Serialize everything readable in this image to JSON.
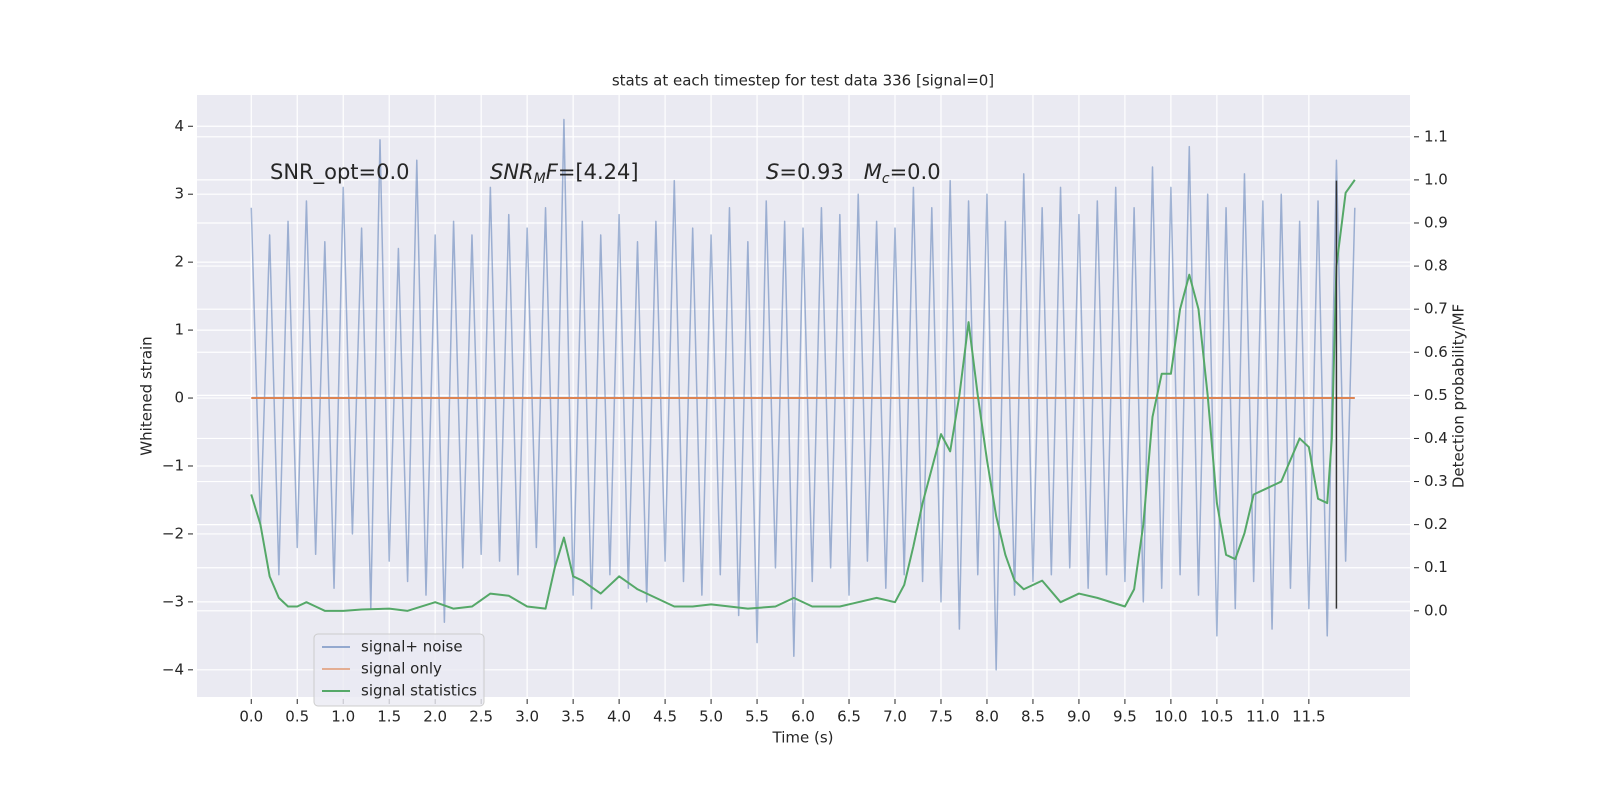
{
  "chart_data": {
    "type": "line",
    "title": "stats at each timestep for test data 336 [signal=0]",
    "xlabel": "Time (s)",
    "ylabel": "Whitened strain",
    "y2label": "Detection probability/MF",
    "annotations": [
      {
        "parts": [
          {
            "text": "SNR_opt=0.0"
          }
        ]
      },
      {
        "parts": [
          {
            "text": "SNR",
            "italic": true
          },
          {
            "text": "M",
            "italic": true,
            "sub": true
          },
          {
            "text": "F",
            "italic": true
          },
          {
            "text": "=[4.24]"
          }
        ]
      },
      {
        "parts": [
          {
            "text": "S",
            "italic": true
          },
          {
            "text": "=0.93   "
          },
          {
            "text": "M",
            "italic": true
          },
          {
            "text": "c",
            "italic": true,
            "sub": true
          },
          {
            "text": "=0.0"
          }
        ]
      }
    ],
    "xlim": [
      -0.59,
      12.6
    ],
    "ylim": [
      -4.4,
      4.46
    ],
    "y2lim": [
      -0.2,
      1.197
    ],
    "xticks": [
      {
        "value": 0,
        "label": "0.0"
      },
      0.5,
      {
        "value": 1,
        "label": "1.0"
      },
      1.5,
      {
        "value": 2,
        "label": "2.0"
      },
      2.5,
      {
        "value": 3,
        "label": "3.0"
      },
      3.5,
      {
        "value": 4,
        "label": "4.0"
      },
      4.5,
      {
        "value": 5,
        "label": "5.0"
      },
      5.5,
      {
        "value": 6,
        "label": "6.0"
      },
      6.5,
      {
        "value": 7,
        "label": "7.0"
      },
      7.5,
      {
        "value": 8,
        "label": "8.0"
      },
      8.5,
      {
        "value": 9,
        "label": "9.0"
      },
      9.5,
      {
        "value": 10,
        "label": "10.0"
      },
      10.5,
      {
        "value": 11,
        "label": "11.0"
      },
      11.5
    ],
    "yticks": [
      {
        "value": -4,
        "label": "−4"
      },
      {
        "value": -3,
        "label": "−3"
      },
      {
        "value": -2,
        "label": "−2"
      },
      {
        "value": -1,
        "label": "−1"
      },
      0,
      1,
      2,
      3,
      4
    ],
    "y2ticks": [
      {
        "value": 0,
        "label": "0.0"
      },
      0.1,
      0.2,
      0.3,
      0.4,
      0.5,
      0.6,
      0.7,
      0.8,
      0.9,
      {
        "value": 1,
        "label": "1.0"
      },
      1.1
    ],
    "grid": true,
    "legend": "lower left",
    "markers": [
      {
        "x": 11.8,
        "ymin": -3.1,
        "ymax": 3.2,
        "color": "#333333"
      }
    ],
    "series": [
      {
        "name": "signal+ noise",
        "color": "#4c72b0",
        "x": [
          0,
          0.1,
          0.2,
          0.3,
          0.4,
          0.5,
          0.6,
          0.7,
          0.8,
          0.9,
          1,
          1.1,
          1.2,
          1.3,
          1.4,
          1.5,
          1.6,
          1.7,
          1.8,
          1.9,
          2,
          2.1,
          2.2,
          2.3,
          2.4,
          2.5,
          2.6,
          2.7,
          2.8,
          2.9,
          3,
          3.1,
          3.2,
          3.3,
          3.4,
          3.5,
          3.6,
          3.7,
          3.8,
          3.9,
          4,
          4.1,
          4.2,
          4.3,
          4.4,
          4.5,
          4.6,
          4.7,
          4.8,
          4.9,
          5,
          5.1,
          5.2,
          5.3,
          5.4,
          5.5,
          5.6,
          5.7,
          5.8,
          5.9,
          6,
          6.1,
          6.2,
          6.3,
          6.4,
          6.5,
          6.6,
          6.7,
          6.8,
          6.9,
          7,
          7.1,
          7.2,
          7.3,
          7.4,
          7.5,
          7.6,
          7.7,
          7.8,
          7.9,
          8,
          8.1,
          8.2,
          8.3,
          8.4,
          8.5,
          8.6,
          8.7,
          8.8,
          8.9,
          9,
          9.1,
          9.2,
          9.3,
          9.4,
          9.5,
          9.6,
          9.7,
          9.8,
          9.9,
          10,
          10.1,
          10.2,
          10.3,
          10.4,
          10.5,
          10.6,
          10.7,
          10.8,
          10.9,
          11,
          11.1,
          11.2,
          11.3,
          11.4,
          11.5,
          11.6,
          11.7,
          11.8,
          11.9,
          12
        ],
        "values": [
          2.8,
          -1.9,
          2.4,
          -2.6,
          2.6,
          -2.2,
          2.9,
          -2.3,
          2.3,
          -2.8,
          3.1,
          -2.0,
          2.5,
          -3.1,
          3.8,
          -2.4,
          2.2,
          -2.7,
          3.5,
          -2.9,
          2.4,
          -3.3,
          2.6,
          -2.5,
          2.4,
          -2.3,
          3.1,
          -2.4,
          2.7,
          -2.6,
          2.5,
          -2.2,
          2.8,
          -2.5,
          4.1,
          -2.9,
          2.6,
          -3.1,
          2.4,
          -2.6,
          2.7,
          -2.8,
          2.3,
          -3.0,
          2.6,
          -2.4,
          3.2,
          -2.7,
          2.5,
          -2.9,
          2.4,
          -2.6,
          2.8,
          -3.2,
          2.3,
          -3.6,
          2.9,
          -2.5,
          2.6,
          -3.8,
          2.5,
          -2.7,
          2.8,
          -2.5,
          2.7,
          -2.9,
          3.0,
          -2.4,
          2.6,
          -2.8,
          2.5,
          -2.6,
          3.1,
          -2.7,
          2.8,
          -3.0,
          3.2,
          -3.4,
          2.9,
          -2.6,
          3.0,
          -4.0,
          2.6,
          -2.9,
          3.3,
          -2.7,
          2.8,
          -2.6,
          3.1,
          -2.5,
          2.7,
          -2.8,
          2.9,
          -2.6,
          3.1,
          -2.7,
          2.8,
          -3.0,
          3.4,
          -2.8,
          3.1,
          -2.6,
          3.7,
          -2.9,
          3.0,
          -3.5,
          2.8,
          -3.1,
          3.3,
          -2.7,
          2.9,
          -3.4,
          3.0,
          -2.8,
          2.6,
          -3.1,
          2.9,
          -3.5,
          3.5,
          -2.4,
          2.8
        ]
      },
      {
        "name": "signal only",
        "color": "#dd8452",
        "x": [
          0,
          12
        ],
        "values": [
          0,
          0
        ]
      },
      {
        "name": "signal statistics",
        "color": "#55a868",
        "axis": "y2",
        "x": [
          0,
          0.1,
          0.2,
          0.3,
          0.4,
          0.5,
          0.6,
          0.7,
          0.8,
          1.0,
          1.2,
          1.5,
          1.7,
          2.0,
          2.2,
          2.4,
          2.6,
          2.8,
          3.0,
          3.2,
          3.3,
          3.4,
          3.5,
          3.6,
          3.8,
          4.0,
          4.2,
          4.4,
          4.6,
          4.8,
          5.0,
          5.4,
          5.7,
          5.9,
          6.1,
          6.4,
          6.6,
          6.8,
          7.0,
          7.1,
          7.2,
          7.3,
          7.4,
          7.5,
          7.6,
          7.7,
          7.8,
          7.9,
          8.0,
          8.1,
          8.2,
          8.3,
          8.4,
          8.6,
          8.8,
          9.0,
          9.2,
          9.5,
          9.6,
          9.7,
          9.8,
          9.9,
          10.0,
          10.1,
          10.2,
          10.3,
          10.4,
          10.5,
          10.6,
          10.7,
          10.8,
          10.9,
          11.0,
          11.2,
          11.4,
          11.5,
          11.6,
          11.7,
          11.75,
          11.8,
          11.9,
          12.0
        ],
        "values": [
          0.27,
          0.2,
          0.08,
          0.03,
          0.01,
          0.01,
          0.02,
          0.01,
          0.0,
          0.0,
          0.003,
          0.005,
          0.0,
          0.02,
          0.005,
          0.01,
          0.04,
          0.035,
          0.01,
          0.005,
          0.1,
          0.17,
          0.08,
          0.07,
          0.04,
          0.08,
          0.05,
          0.03,
          0.01,
          0.01,
          0.015,
          0.005,
          0.01,
          0.03,
          0.01,
          0.01,
          0.02,
          0.03,
          0.02,
          0.06,
          0.15,
          0.25,
          0.33,
          0.41,
          0.37,
          0.5,
          0.67,
          0.5,
          0.35,
          0.22,
          0.13,
          0.07,
          0.05,
          0.07,
          0.02,
          0.04,
          0.03,
          0.01,
          0.05,
          0.2,
          0.45,
          0.55,
          0.55,
          0.7,
          0.78,
          0.7,
          0.5,
          0.25,
          0.13,
          0.12,
          0.18,
          0.27,
          0.28,
          0.3,
          0.4,
          0.38,
          0.26,
          0.25,
          0.4,
          0.8,
          0.97,
          1.0
        ]
      }
    ]
  }
}
